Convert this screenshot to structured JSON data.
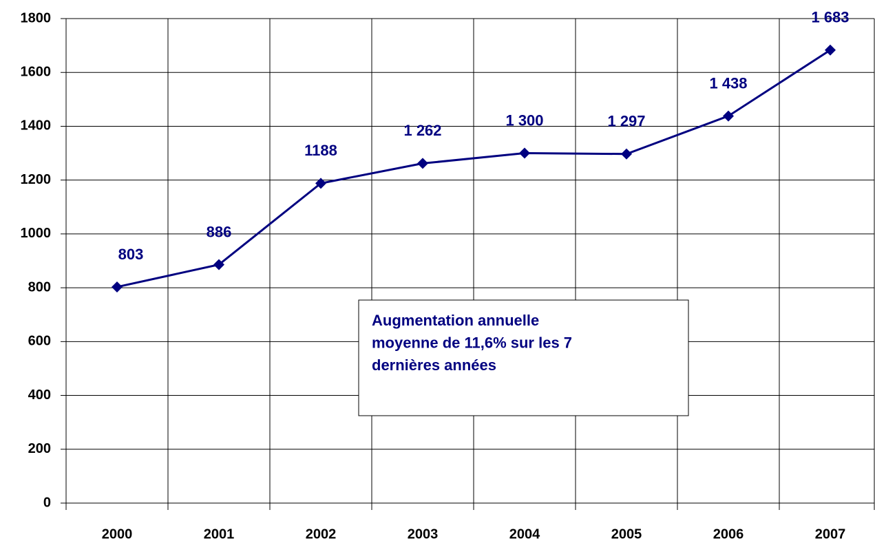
{
  "chart_data": {
    "type": "line",
    "categories": [
      "2000",
      "2001",
      "2002",
      "2003",
      "2004",
      "2005",
      "2006",
      "2007"
    ],
    "series": [
      {
        "color": "#000080",
        "values": [
          803,
          886,
          1188,
          1262,
          1300,
          1297,
          1438,
          1683
        ],
        "value_labels": [
          "803",
          "886",
          "1188",
          "1 262",
          "1 300",
          "1 297",
          "1 438",
          "1 683"
        ]
      }
    ],
    "ylim": [
      0,
      1800
    ],
    "yticks": [
      0,
      200,
      400,
      600,
      800,
      1000,
      1200,
      1400,
      1600,
      1800
    ],
    "grid": true,
    "annotation": [
      "Augmentation annuelle",
      "moyenne de 11,6% sur les 7",
      "dernières années"
    ]
  }
}
